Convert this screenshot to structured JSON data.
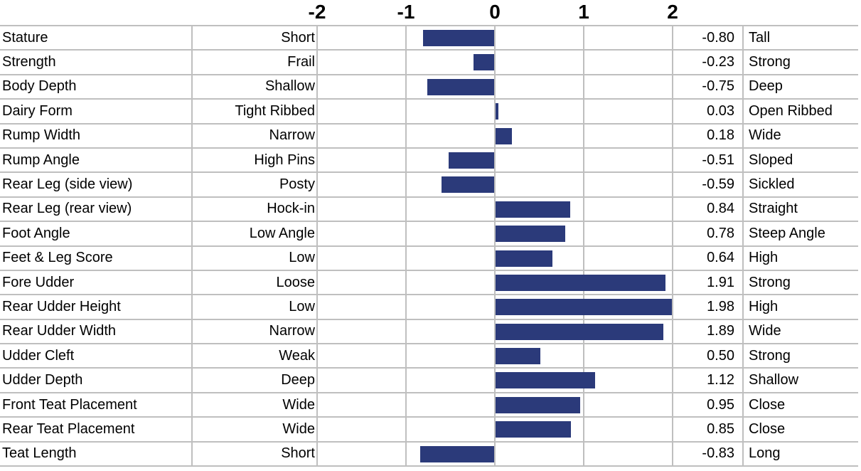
{
  "chart_data": {
    "type": "bar",
    "orientation": "horizontal",
    "title": "",
    "xlabel": "",
    "ylabel": "",
    "xlim": [
      -2,
      2
    ],
    "x_ticks": [
      -2,
      -1,
      0,
      1,
      2
    ],
    "x_tick_labels": [
      "-2",
      "-1",
      "0",
      "1",
      "2"
    ],
    "grid": true,
    "legend": "none",
    "bar_color": "#2B3A7A",
    "gridline_color": "#BFBFBF",
    "rows": [
      {
        "trait": "Stature",
        "low": "Short",
        "value": -0.8,
        "high": "Tall"
      },
      {
        "trait": "Strength",
        "low": "Frail",
        "value": -0.23,
        "high": "Strong"
      },
      {
        "trait": "Body Depth",
        "low": "Shallow",
        "value": -0.75,
        "high": "Deep"
      },
      {
        "trait": "Dairy Form",
        "low": "Tight Ribbed",
        "value": 0.03,
        "high": "Open Ribbed"
      },
      {
        "trait": "Rump Width",
        "low": "Narrow",
        "value": 0.18,
        "high": "Wide"
      },
      {
        "trait": "Rump Angle",
        "low": "High Pins",
        "value": -0.51,
        "high": "Sloped"
      },
      {
        "trait": "Rear Leg (side view)",
        "low": "Posty",
        "value": -0.59,
        "high": "Sickled"
      },
      {
        "trait": "Rear Leg (rear view)",
        "low": "Hock-in",
        "value": 0.84,
        "high": "Straight"
      },
      {
        "trait": "Foot Angle",
        "low": "Low Angle",
        "value": 0.78,
        "high": "Steep Angle"
      },
      {
        "trait": "Feet & Leg Score",
        "low": "Low",
        "value": 0.64,
        "high": "High"
      },
      {
        "trait": "Fore Udder",
        "low": "Loose",
        "value": 1.91,
        "high": "Strong"
      },
      {
        "trait": "Rear Udder Height",
        "low": "Low",
        "value": 1.98,
        "high": "High"
      },
      {
        "trait": "Rear Udder Width",
        "low": "Narrow",
        "value": 1.89,
        "high": "Wide"
      },
      {
        "trait": "Udder Cleft",
        "low": "Weak",
        "value": 0.5,
        "high": "Strong"
      },
      {
        "trait": "Udder Depth",
        "low": "Deep",
        "value": 1.12,
        "high": "Shallow"
      },
      {
        "trait": "Front Teat Placement",
        "low": "Wide",
        "value": 0.95,
        "high": "Close"
      },
      {
        "trait": "Rear Teat Placement",
        "low": "Wide",
        "value": 0.85,
        "high": "Close"
      },
      {
        "trait": "Teat Length",
        "low": "Short",
        "value": -0.83,
        "high": "Long"
      }
    ]
  }
}
